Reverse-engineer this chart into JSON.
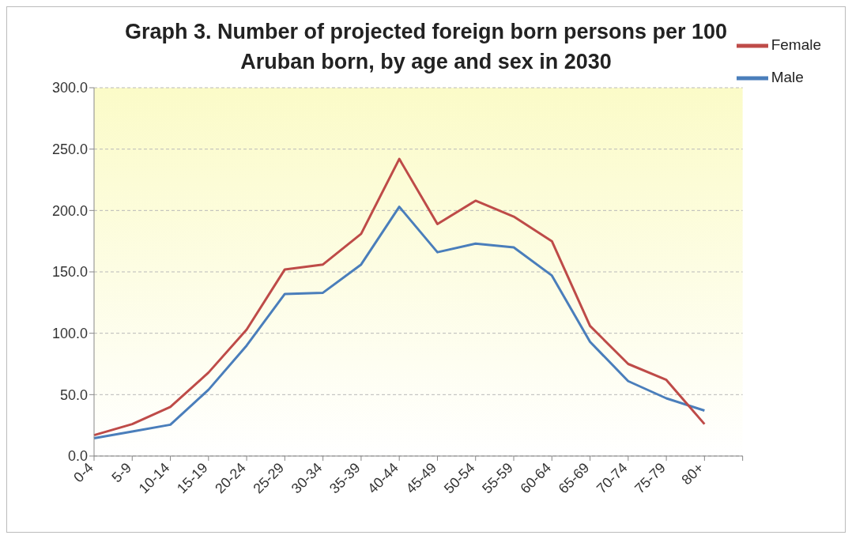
{
  "chart_data": {
    "type": "line",
    "title": "Graph 3. Number of projected foreign born persons per 100\nAruban born, by age and sex in  2030",
    "categories": [
      "0-4",
      "5-9",
      "10-14",
      "15-19",
      "20-24",
      "25-29",
      "30-34",
      "35-39",
      "40-44",
      "45-49",
      "50-54",
      "55-59",
      "60-64",
      "65-69",
      "70-74",
      "75-79",
      "80+",
      null
    ],
    "series": [
      {
        "name": "Male",
        "color": "#4a7ebb",
        "values": [
          14.5,
          20,
          25.5,
          54,
          90,
          132,
          133,
          156,
          203,
          166,
          173,
          170,
          147,
          93,
          61,
          47,
          37,
          null
        ]
      },
      {
        "name": "Female",
        "color": "#be4b48",
        "values": [
          17,
          26,
          40,
          68,
          103,
          152,
          156,
          181,
          242,
          189,
          208,
          195,
          175,
          106,
          75,
          62,
          26,
          null
        ]
      }
    ],
    "ylim": [
      0,
      300
    ],
    "yticks": [
      {
        "value": 0,
        "label": "0.0"
      },
      {
        "value": 50,
        "label": "50.0"
      },
      {
        "value": 100,
        "label": "100.0"
      },
      {
        "value": 150,
        "label": "150.0"
      },
      {
        "value": 200,
        "label": "200.0"
      },
      {
        "value": 250,
        "label": "250.0"
      },
      {
        "value": 300,
        "label": "300.0"
      }
    ],
    "grid": "y",
    "legend": "right",
    "marker": "none",
    "line_style": "solid"
  }
}
